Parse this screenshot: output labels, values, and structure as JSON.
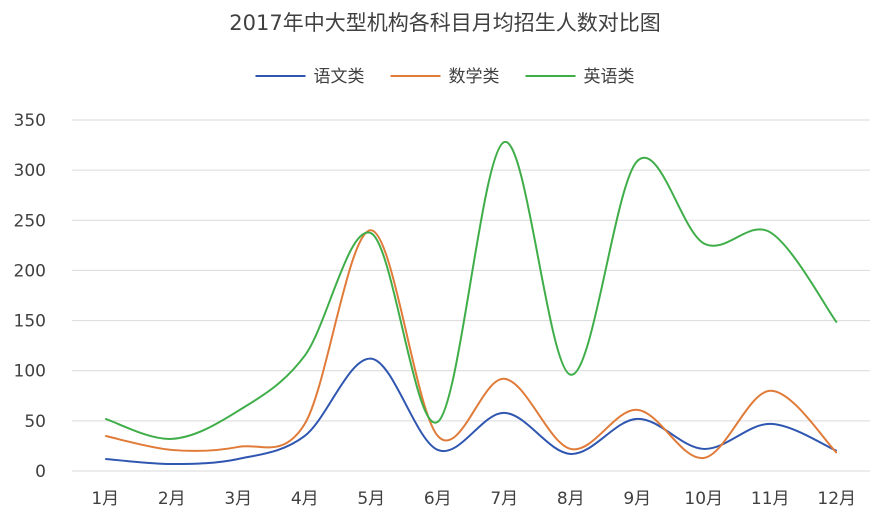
{
  "chart_data": {
    "type": "line",
    "title": "2017年中大型机构各科目月均招生人数对比图",
    "categories": [
      "1月",
      "2月",
      "3月",
      "4月",
      "5月",
      "6月",
      "7月",
      "8月",
      "9月",
      "10月",
      "11月",
      "12月"
    ],
    "ylim": [
      0,
      350
    ],
    "yticks": [
      0,
      50,
      100,
      150,
      200,
      250,
      300,
      350
    ],
    "grid": true,
    "smooth": true,
    "legend_position": "top",
    "series": [
      {
        "name": "语文类",
        "color": "#2f56b0",
        "values": [
          12,
          7,
          12,
          35,
          112,
          21,
          58,
          17,
          52,
          22,
          47,
          20
        ]
      },
      {
        "name": "数学类",
        "color": "#e07b39",
        "values": [
          35,
          21,
          24,
          47,
          240,
          35,
          92,
          22,
          61,
          13,
          80,
          18
        ]
      },
      {
        "name": "英语类",
        "color": "#3fae49",
        "values": [
          52,
          32,
          60,
          115,
          237,
          49,
          328,
          96,
          309,
          227,
          238,
          148
        ]
      }
    ]
  }
}
